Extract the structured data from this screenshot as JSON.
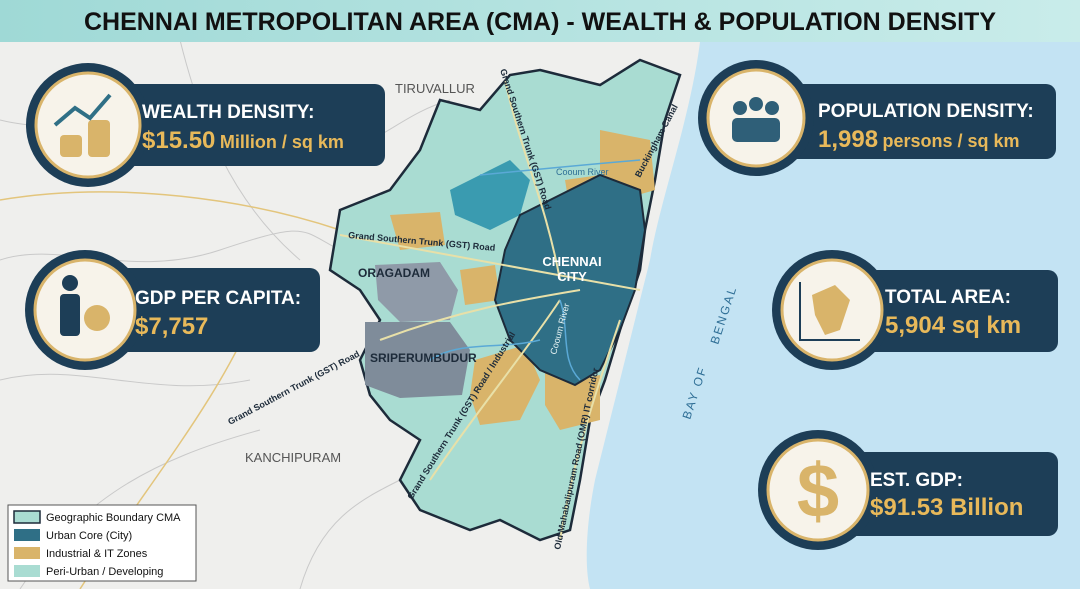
{
  "title": "CHENNAI METROPOLITAN AREA (CMA) - WEALTH & POPULATION DENSITY",
  "stats": [
    {
      "label": "WEALTH DENSITY:",
      "value": "$15.50",
      "unit": "Million / sq km"
    },
    {
      "label": "POPULATION DENSITY:",
      "value": "1,998",
      "unit": "persons / sq km"
    },
    {
      "label": "GDP PER CAPITA:",
      "value": "$7,757"
    },
    {
      "label": "TOTAL AREA:",
      "value": "5,904 sq km"
    },
    {
      "label": "EST. GDP:",
      "value": "$91.53 Billion"
    }
  ],
  "places": {
    "tiruvallur": "TIRUVALLUR",
    "kanchipuram": "KANCHIPURAM",
    "oragadam": "ORAGADAM",
    "sriperumbudur": "SRIPERUMBUDUR",
    "city_1": "CHENNAI",
    "city_2": "CITY",
    "sea_1": "BAY OF",
    "sea_2": "BENGAL"
  },
  "roads": {
    "gst_north": "Grand Southern Trunk (GST) Road",
    "gst_mid": "Grand Southern Trunk (GST) Road",
    "gst_west": "Grand Southern Trunk (GST) Road",
    "gst_south": "Grand Southern Trunk (GST) Road / Industrial",
    "omr": "Old Mahabalipuram Road (OMR) IT corridor",
    "cooum_1": "Cooum River",
    "cooum_2": "Cooum River",
    "canal": "Buckingham Canal"
  },
  "legend": [
    "Geographic Boundary CMA",
    "Urban Core (City)",
    "Industrial & IT Zones",
    "Peri-Urban / Developing"
  ]
}
